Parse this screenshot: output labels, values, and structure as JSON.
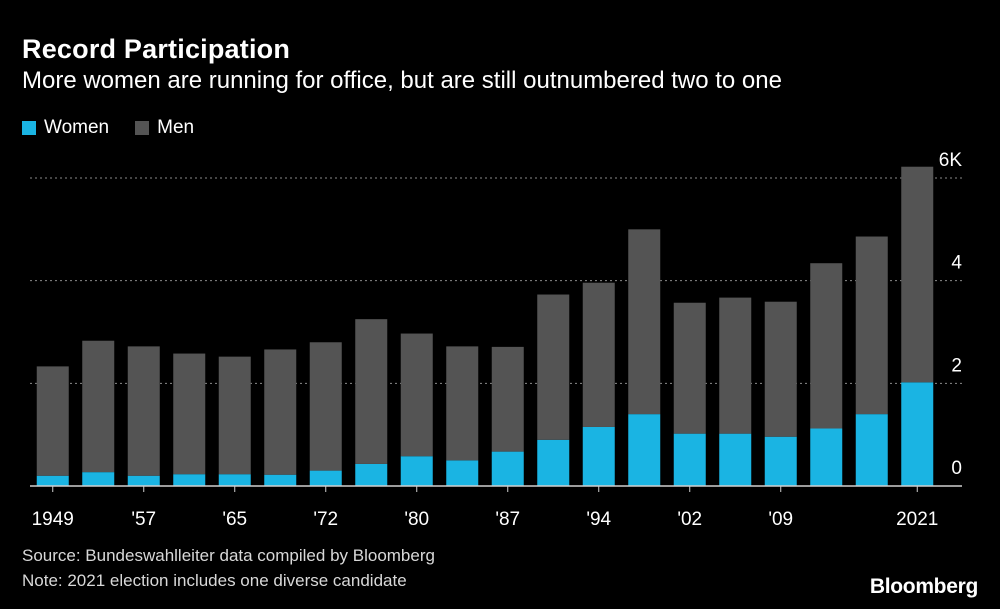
{
  "header": {
    "title": "Record Participation",
    "subtitle": "More women are running for office, but are still outnumbered two to one"
  },
  "legend": [
    {
      "label": "Women",
      "color": "#1ab4e3"
    },
    {
      "label": "Men",
      "color": "#545454"
    }
  ],
  "chart_data": {
    "type": "bar",
    "stacked": true,
    "title": "Record Participation",
    "xlabel": "",
    "ylabel": "",
    "ylim": [
      0,
      6
    ],
    "y_unit": "thousands of candidates",
    "y_ticks": [
      0,
      2,
      4,
      6
    ],
    "y_tick_labels": [
      "0",
      "2",
      "4",
      "6K"
    ],
    "grid": true,
    "categories": [
      "1949",
      "1953",
      "1957",
      "1961",
      "1965",
      "1969",
      "1972",
      "1976",
      "1980",
      "1983",
      "1987",
      "1990",
      "1994",
      "1998",
      "2002",
      "2005",
      "2009",
      "2013",
      "2017",
      "2021"
    ],
    "x_tick_labels": [
      "1949",
      "",
      "'57",
      "",
      "'65",
      "",
      "'72",
      "",
      "'80",
      "",
      "'87",
      "",
      "'94",
      "",
      "'02",
      "",
      "'09",
      "",
      "",
      "2021"
    ],
    "series": [
      {
        "name": "Women",
        "values": [
          0.2,
          0.27,
          0.2,
          0.23,
          0.23,
          0.22,
          0.3,
          0.43,
          0.58,
          0.5,
          0.67,
          0.9,
          1.15,
          1.4,
          1.02,
          1.02,
          0.96,
          1.12,
          1.4,
          2.02
        ]
      },
      {
        "name": "Men",
        "values": [
          2.13,
          2.56,
          2.52,
          2.35,
          2.29,
          2.44,
          2.5,
          2.82,
          2.39,
          2.22,
          2.04,
          2.83,
          2.81,
          3.6,
          2.55,
          2.65,
          2.63,
          3.22,
          3.46,
          4.2
        ]
      }
    ]
  },
  "footer": {
    "source": "Source: Bundeswahlleiter data compiled by Bloomberg",
    "note": "Note: 2021 election includes one diverse candidate",
    "logo": "Bloomberg"
  }
}
